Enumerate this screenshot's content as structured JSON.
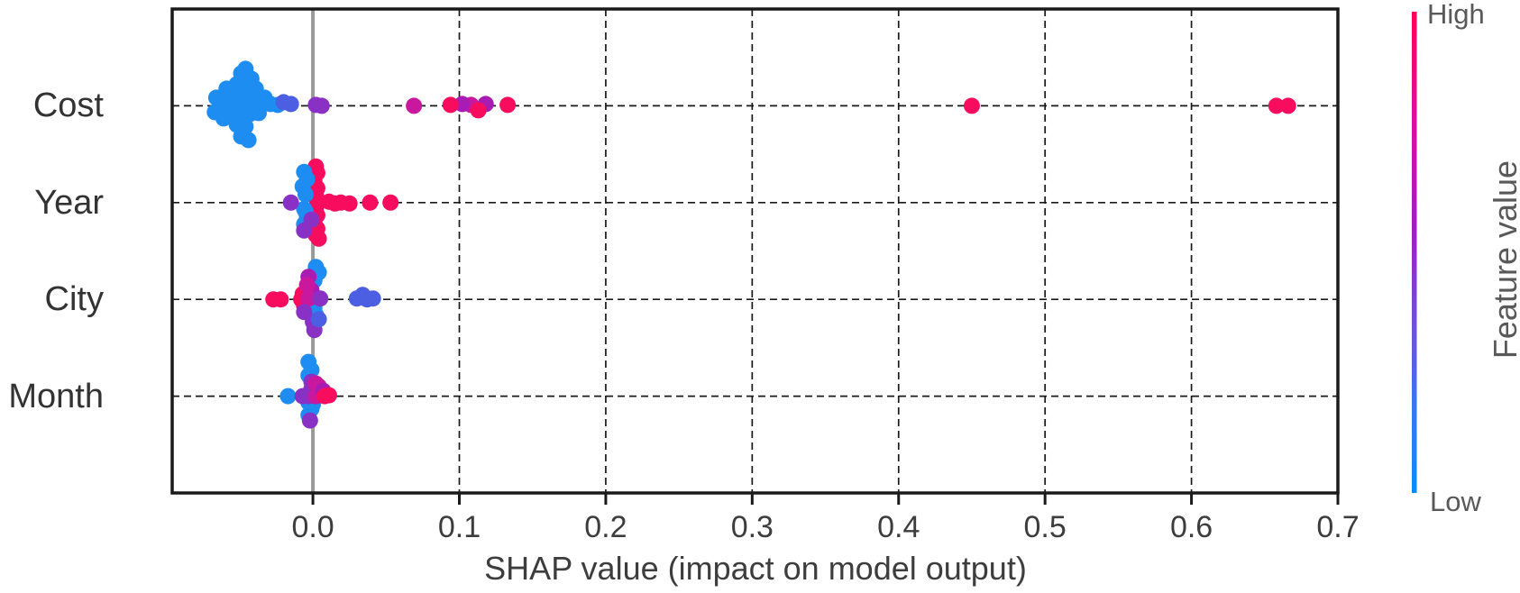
{
  "chart_data": {
    "type": "scatter",
    "subtype": "shap-beeswarm",
    "title": "",
    "xlabel": "SHAP value (impact on model output)",
    "ylabel": "",
    "xlim": [
      -0.0961,
      0.7
    ],
    "grid": true,
    "x_ticks": [
      {
        "value": 0.0,
        "label": "0.0"
      },
      {
        "value": 0.1,
        "label": "0.1"
      },
      {
        "value": 0.2,
        "label": "0.2"
      },
      {
        "value": 0.3,
        "label": "0.3"
      },
      {
        "value": 0.4,
        "label": "0.4"
      },
      {
        "value": 0.5,
        "label": "0.5"
      },
      {
        "value": 0.6,
        "label": "0.6"
      },
      {
        "value": 0.7,
        "label": "0.7"
      }
    ],
    "zero_line_color": "#999999",
    "grid_color": "#1a1a1a",
    "marker_radius": 9,
    "palette": {
      "b": "#1d8df2",
      "b2": "#4c5ee2",
      "p": "#8931c5",
      "pm": "#a81cb4",
      "m": "#c9189e",
      "c": "#f70c5e"
    },
    "colorbar": {
      "label": "Feature value",
      "high_label": "High",
      "low_label": "Low",
      "gradient": [
        {
          "offset": 0.0,
          "color": "#ff0156"
        },
        {
          "offset": 0.22,
          "color": "#dd0f9e"
        },
        {
          "offset": 0.45,
          "color": "#a21cc7"
        },
        {
          "offset": 0.65,
          "color": "#7050dc"
        },
        {
          "offset": 0.83,
          "color": "#3579ef"
        },
        {
          "offset": 1.0,
          "color": "#0a8df9"
        }
      ]
    },
    "features": [
      {
        "name": "Cost",
        "points": [
          [
            -0.049,
            -36,
            "b"
          ],
          [
            -0.046,
            -41,
            "b"
          ],
          [
            -0.052,
            -24,
            "b"
          ],
          [
            -0.045,
            -22,
            "b"
          ],
          [
            -0.039,
            -19,
            "b"
          ],
          [
            -0.057,
            -7,
            "b"
          ],
          [
            -0.049,
            -6,
            "b"
          ],
          [
            -0.043,
            -7,
            "b"
          ],
          [
            -0.035,
            -4,
            "b"
          ],
          [
            -0.029,
            -2,
            "b"
          ],
          [
            -0.024,
            -1,
            "b"
          ],
          [
            -0.049,
            8,
            "b"
          ],
          [
            -0.043,
            9,
            "b"
          ],
          [
            -0.037,
            8,
            "b"
          ],
          [
            -0.052,
            21,
            "b"
          ],
          [
            -0.046,
            23,
            "b"
          ],
          [
            -0.049,
            34,
            "b"
          ],
          [
            -0.044,
            38,
            "b"
          ],
          [
            -0.039,
            6,
            "b"
          ],
          [
            -0.055,
            6,
            "b"
          ],
          [
            -0.033,
            -9,
            "b"
          ],
          [
            -0.038,
            -11,
            "b"
          ],
          [
            -0.062,
            -1,
            "b"
          ],
          [
            -0.066,
            -9,
            "b"
          ],
          [
            -0.067,
            7,
            "b"
          ],
          [
            -0.059,
            -19,
            "b"
          ],
          [
            -0.061,
            14,
            "b"
          ],
          [
            -0.054,
            -14,
            "b"
          ],
          [
            -0.051,
            0,
            "b"
          ],
          [
            -0.042,
            -30,
            "b"
          ],
          [
            -0.02,
            -4,
            "b2"
          ],
          [
            -0.015,
            -2,
            "b2"
          ],
          [
            0.002,
            -1,
            "p"
          ],
          [
            0.006,
            0,
            "p"
          ],
          [
            0.069,
            0,
            "m"
          ],
          [
            0.108,
            -1,
            "m"
          ],
          [
            0.102,
            -2,
            "pm"
          ],
          [
            0.118,
            -2,
            "pm"
          ],
          [
            0.094,
            -1,
            "c"
          ],
          [
            0.113,
            5,
            "c"
          ],
          [
            0.133,
            -1,
            "c"
          ],
          [
            0.45,
            0,
            "c"
          ],
          [
            0.658,
            0,
            "c"
          ],
          [
            0.666,
            0,
            "c"
          ]
        ]
      },
      {
        "name": "Year",
        "points": [
          [
            0.002,
            -40,
            "c"
          ],
          [
            0.003,
            -33,
            "c"
          ],
          [
            0.001,
            -24,
            "c"
          ],
          [
            0.003,
            -16,
            "c"
          ],
          [
            0.002,
            -8,
            "c"
          ],
          [
            0.003,
            -1,
            "c"
          ],
          [
            0.002,
            6,
            "c"
          ],
          [
            0.003,
            14,
            "c"
          ],
          [
            0.001,
            21,
            "c"
          ],
          [
            0.003,
            29,
            "c"
          ],
          [
            0.002,
            36,
            "c"
          ],
          [
            0.004,
            40,
            "c"
          ],
          [
            0.011,
            -1,
            "c"
          ],
          [
            0.015,
            1,
            "c"
          ],
          [
            0.019,
            0,
            "c"
          ],
          [
            0.025,
            1,
            "c"
          ],
          [
            0.039,
            0,
            "c"
          ],
          [
            0.053,
            0,
            "c"
          ],
          [
            -0.006,
            -34,
            "b"
          ],
          [
            -0.004,
            -26,
            "b"
          ],
          [
            -0.007,
            -18,
            "b"
          ],
          [
            -0.005,
            -9,
            "b"
          ],
          [
            -0.006,
            7,
            "b"
          ],
          [
            -0.004,
            16,
            "b"
          ],
          [
            -0.006,
            24,
            "b"
          ],
          [
            -0.005,
            10,
            "b"
          ],
          [
            -0.015,
            0,
            "p"
          ],
          [
            -0.006,
            31,
            "p"
          ],
          [
            -0.001,
            19,
            "p"
          ]
        ]
      },
      {
        "name": "City",
        "points": [
          [
            -0.027,
            0,
            "c"
          ],
          [
            -0.022,
            0,
            "c"
          ],
          [
            -0.007,
            -6,
            "c"
          ],
          [
            -0.008,
            0,
            "c"
          ],
          [
            -0.006,
            7,
            "c"
          ],
          [
            0.002,
            -36,
            "b"
          ],
          [
            0.004,
            -30,
            "b"
          ],
          [
            0.001,
            -21,
            "b"
          ],
          [
            0.001,
            9,
            "b"
          ],
          [
            0.002,
            17,
            "b"
          ],
          [
            -0.003,
            -25,
            "pm"
          ],
          [
            -0.001,
            -10,
            "pm"
          ],
          [
            -0.004,
            -16,
            "m"
          ],
          [
            -0.003,
            -1,
            "m"
          ],
          [
            -0.006,
            14,
            "p"
          ],
          [
            0.0,
            25,
            "p"
          ],
          [
            0.001,
            34,
            "p"
          ],
          [
            0.005,
            -1,
            "p"
          ],
          [
            0.004,
            22,
            "b2"
          ],
          [
            0.03,
            -1,
            "b2"
          ],
          [
            0.034,
            -5,
            "b2"
          ],
          [
            0.037,
            0,
            "b2"
          ],
          [
            0.041,
            -1,
            "b2"
          ]
        ]
      },
      {
        "name": "Month",
        "points": [
          [
            -0.017,
            0,
            "b"
          ],
          [
            -0.003,
            -38,
            "b"
          ],
          [
            -0.001,
            -29,
            "b"
          ],
          [
            -0.003,
            -23,
            "b"
          ],
          [
            -0.003,
            7,
            "b"
          ],
          [
            -0.001,
            14,
            "b"
          ],
          [
            -0.003,
            21,
            "b"
          ],
          [
            0.0,
            9,
            "b"
          ],
          [
            -0.007,
            0,
            "p"
          ],
          [
            -0.001,
            -16,
            "p"
          ],
          [
            -0.001,
            -8,
            "p"
          ],
          [
            -0.003,
            0,
            "p"
          ],
          [
            -0.002,
            27,
            "p"
          ],
          [
            0.002,
            -14,
            "m"
          ],
          [
            0.004,
            -11,
            "m"
          ],
          [
            0.002,
            0,
            "m"
          ],
          [
            0.007,
            -6,
            "pm"
          ],
          [
            0.008,
            0,
            "c"
          ],
          [
            0.011,
            -1,
            "c"
          ]
        ]
      }
    ]
  }
}
